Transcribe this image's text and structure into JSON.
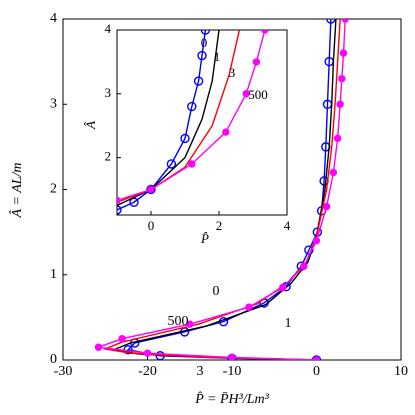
{
  "chart_data": [
    {
      "type": "line",
      "xlabel": "P̂ = P̄H³/Lm³",
      "ylabel": "Â = AL/m",
      "xlim": [
        -30,
        10
      ],
      "ylim": [
        0,
        4
      ],
      "xticks": [
        -30,
        -20,
        -10,
        0,
        10
      ],
      "yticks": [
        0,
        1,
        2,
        3,
        4
      ],
      "series": [
        {
          "name": "0",
          "color": "#0000ff",
          "marker": "circle-open",
          "x": [
            0,
            -10,
            -18.5,
            -22.3,
            -21.5,
            -15.6,
            -11,
            -6.2,
            -3.6,
            -1.8,
            -0.9,
            0.1,
            0.6,
            0.9,
            1.1,
            1.3,
            1.5,
            1.7
          ],
          "values": [
            0,
            0.02,
            0.05,
            0.12,
            0.2,
            0.33,
            0.45,
            0.67,
            0.86,
            1.1,
            1.29,
            1.5,
            1.75,
            2.1,
            2.5,
            3,
            3.5,
            4
          ]
        },
        {
          "name": "1",
          "color": "#000000",
          "marker": "none",
          "x": [
            0,
            -12,
            -21,
            -24,
            -22,
            -13,
            -6,
            -3,
            -1,
            0,
            1,
            1.5,
            1.8,
            2,
            2.3
          ],
          "values": [
            0,
            0.03,
            0.07,
            0.12,
            0.2,
            0.4,
            0.65,
            0.9,
            1.15,
            1.45,
            2,
            2.5,
            3,
            3.5,
            4
          ]
        },
        {
          "name": "3",
          "color": "#ff0000",
          "marker": "none",
          "x": [
            0,
            -13,
            -22,
            -25,
            -23,
            -14,
            -7,
            -3.5,
            -1.2,
            0,
            1.2,
            1.8,
            2.2,
            2.5,
            2.8
          ],
          "values": [
            0,
            0.03,
            0.08,
            0.13,
            0.21,
            0.42,
            0.66,
            0.9,
            1.15,
            1.45,
            2,
            2.5,
            3,
            3.5,
            4
          ]
        },
        {
          "name": "500",
          "color": "#ff00ff",
          "marker": "dot",
          "x": [
            0,
            -10,
            -20,
            -25.8,
            -23,
            -15,
            -8,
            -4,
            -1.5,
            0,
            1.2,
            2,
            2.5,
            2.8,
            3,
            3.2,
            3.4
          ],
          "values": [
            0,
            0.03,
            0.08,
            0.15,
            0.25,
            0.42,
            0.62,
            0.85,
            1.1,
            1.4,
            1.8,
            2.2,
            2.6,
            3,
            3.3,
            3.6,
            4
          ]
        }
      ]
    },
    {
      "type": "line",
      "xlabel": "P̂",
      "ylabel": "Â",
      "xlim": [
        -1,
        4
      ],
      "ylim": [
        1.1,
        4
      ],
      "xticks": [
        0,
        2,
        4
      ],
      "yticks": [
        2,
        3,
        4
      ],
      "series": [
        {
          "name": "0",
          "color": "#0000ff",
          "marker": "circle-open",
          "x": [
            -1,
            -0.5,
            0,
            0.6,
            1,
            1.2,
            1.4,
            1.5,
            1.6
          ],
          "values": [
            1.18,
            1.3,
            1.5,
            1.9,
            2.3,
            2.8,
            3.2,
            3.6,
            4
          ]
        },
        {
          "name": "1",
          "color": "#000000",
          "marker": "none",
          "x": [
            -1,
            0,
            1,
            1.5,
            1.8,
            2
          ],
          "values": [
            1.25,
            1.5,
            2,
            2.6,
            3.2,
            4
          ]
        },
        {
          "name": "3",
          "color": "#ff0000",
          "marker": "none",
          "x": [
            -1,
            0,
            1,
            1.8,
            2.3,
            2.6
          ],
          "values": [
            1.3,
            1.5,
            1.85,
            2.5,
            3.3,
            4
          ]
        },
        {
          "name": "500",
          "color": "#ff00ff",
          "marker": "dot",
          "x": [
            -1,
            0,
            1.2,
            2.2,
            2.8,
            3.1,
            3.35
          ],
          "values": [
            1.33,
            1.5,
            1.9,
            2.4,
            3,
            3.5,
            4
          ]
        }
      ]
    }
  ]
}
